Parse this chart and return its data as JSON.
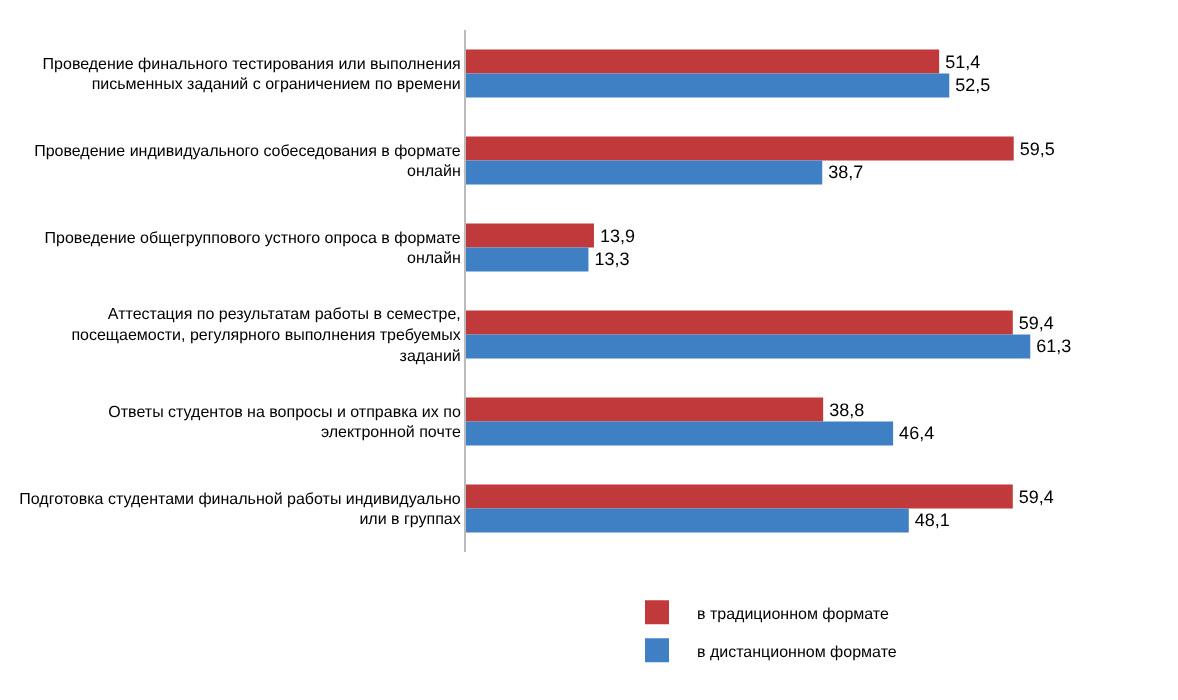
{
  "chart_data": {
    "type": "bar",
    "orientation": "horizontal",
    "legend": "bottom",
    "categories": [
      "Проведение финального тестирования или выполнения письменных заданий с ограничением по времени",
      "Проведение индивидуального собеседования в формате онлайн",
      "Проведение общегруппового устного опроса в формате онлайн",
      "Аттестация по результатам работы в семестре, посещаемости, регулярного выполнения требуемых заданий",
      "Ответы студентов на вопросы и отправка их по электронной почте",
      "Подготовка студентами финальной работы индивидуально или в группах"
    ],
    "series": [
      {
        "name": "в традиционном формате",
        "color": "#c0393b",
        "values": [
          51.4,
          59.5,
          13.9,
          59.4,
          38.8,
          59.4
        ],
        "value_labels": [
          "51,4",
          "59,5",
          "13,9",
          "59,4",
          "38,8",
          "59,4"
        ]
      },
      {
        "name": "в дистанционном формате",
        "color": "#3f7fc4",
        "values": [
          52.5,
          38.7,
          13.3,
          61.3,
          46.4,
          48.1
        ],
        "value_labels": [
          "52,5",
          "38,7",
          "13,3",
          "61,3",
          "46,4",
          "48,1"
        ]
      }
    ]
  }
}
